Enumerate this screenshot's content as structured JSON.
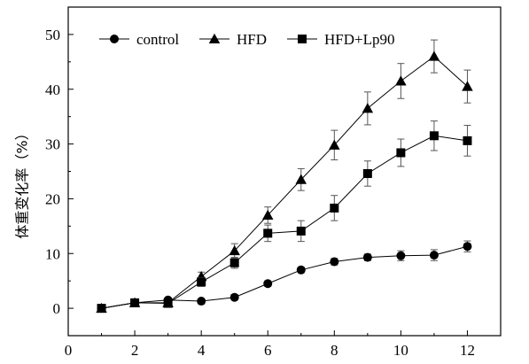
{
  "chart_data": {
    "type": "line",
    "ylabel": "体重变化率（%）",
    "xlabel": "",
    "x": [
      1,
      2,
      3,
      4,
      5,
      6,
      7,
      8,
      9,
      10,
      11,
      12
    ],
    "xlim": [
      0,
      13
    ],
    "ylim": [
      -5,
      55
    ],
    "xticks": [
      "0",
      "2",
      "4",
      "6",
      "8",
      "10",
      "12"
    ],
    "yticks": [
      "0",
      "10",
      "20",
      "30",
      "40",
      "50"
    ],
    "grid": false,
    "legend_position": "top",
    "series": [
      {
        "name": "control",
        "marker": "circle",
        "values": [
          0,
          1.0,
          1.5,
          1.3,
          2.0,
          4.5,
          7.0,
          8.5,
          9.3,
          9.6,
          9.7,
          11.3
        ],
        "errors": [
          0,
          0.5,
          0.4,
          0.4,
          0.5,
          0.5,
          0.5,
          0.6,
          0.6,
          0.9,
          1.0,
          1.0
        ]
      },
      {
        "name": "HFD",
        "marker": "triangle",
        "values": [
          0,
          1.0,
          1.0,
          5.8,
          10.5,
          17.0,
          23.5,
          29.8,
          36.5,
          41.5,
          46.0,
          40.5
        ],
        "errors": [
          0,
          0.5,
          0.5,
          0.8,
          1.3,
          1.5,
          2.0,
          2.7,
          3.0,
          3.2,
          3.0,
          3.0
        ]
      },
      {
        "name": "HFD+Lp90",
        "marker": "square",
        "values": [
          0,
          1.0,
          0.9,
          4.8,
          8.3,
          13.7,
          14.1,
          18.3,
          24.6,
          28.4,
          31.5,
          30.6
        ],
        "errors": [
          0,
          0.5,
          0.4,
          0.8,
          1.0,
          1.5,
          1.9,
          2.3,
          2.3,
          2.5,
          2.7,
          2.8
        ]
      }
    ]
  }
}
